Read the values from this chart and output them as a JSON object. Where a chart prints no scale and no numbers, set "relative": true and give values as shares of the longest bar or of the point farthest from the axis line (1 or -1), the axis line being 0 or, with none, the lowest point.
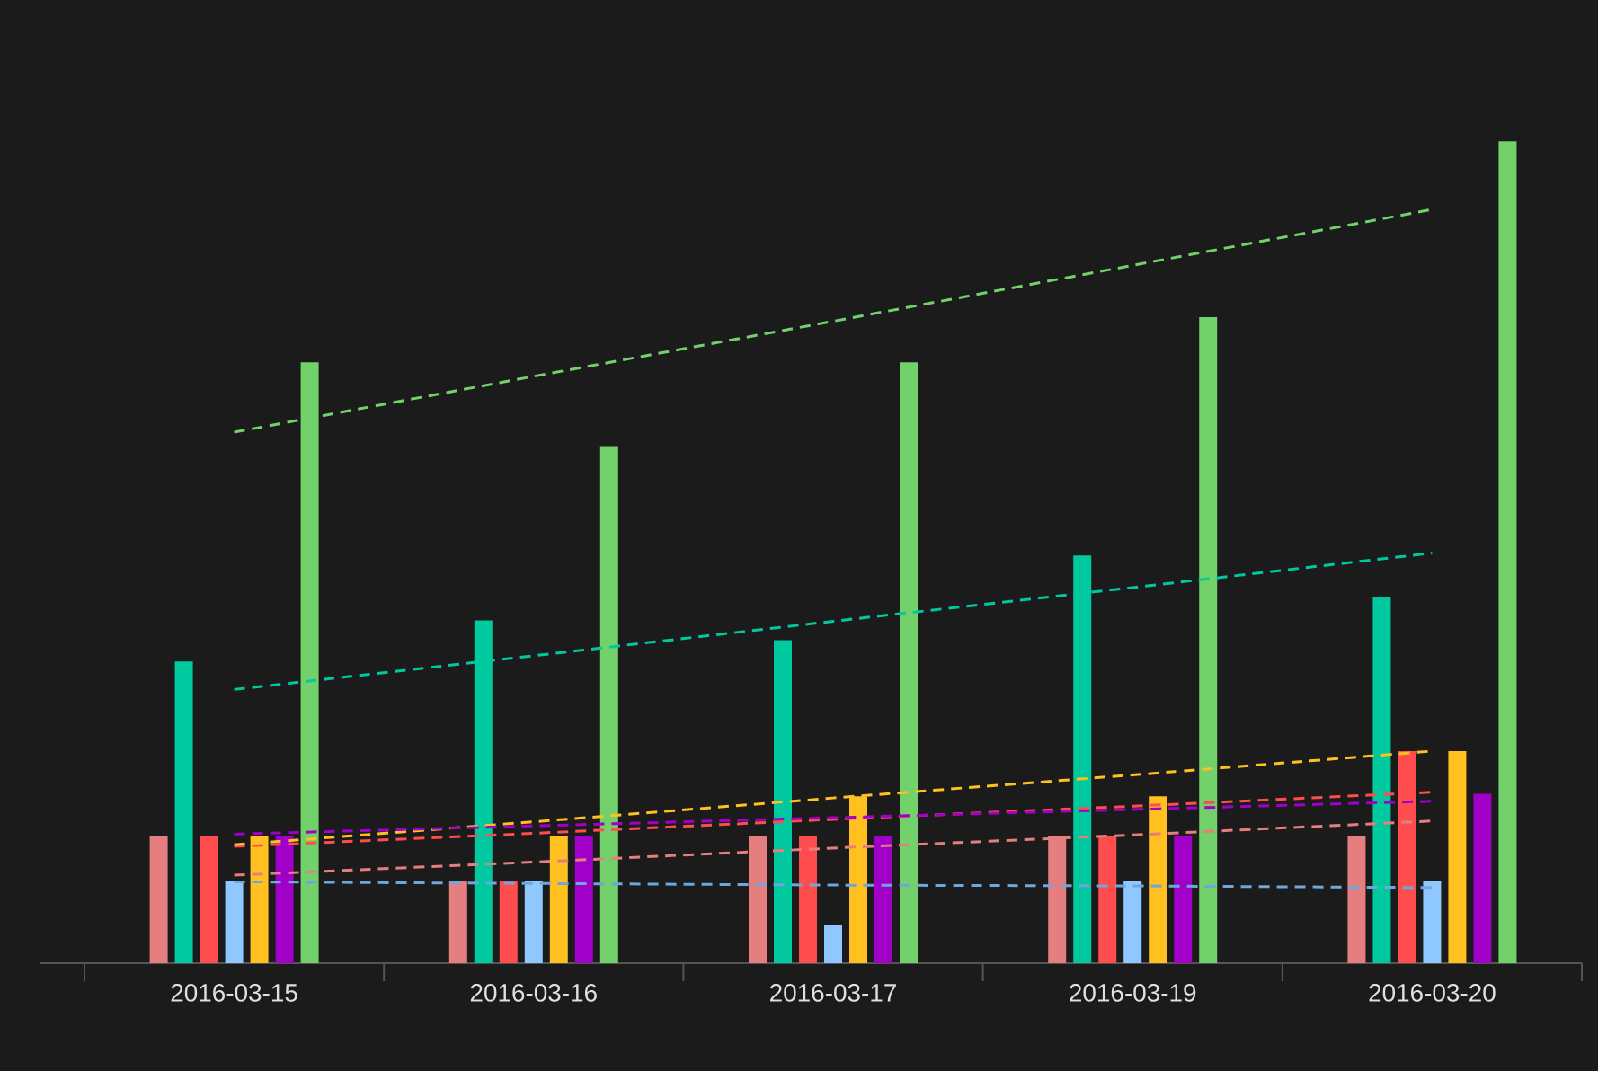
{
  "chart_data": {
    "type": "bar",
    "relative": true,
    "categories": [
      "2016-03-15",
      "2016-03-16",
      "2016-03-17",
      "2016-03-19",
      "2016-03-20"
    ],
    "series": [
      {
        "color": "#e57f7f",
        "values": [
          0.155,
          0.1,
          0.155,
          0.155,
          0.155
        ]
      },
      {
        "color": "#00c9a0",
        "values": [
          0.367,
          0.417,
          0.393,
          0.496,
          0.445
        ]
      },
      {
        "color": "#ff4d4d",
        "values": [
          0.155,
          0.1,
          0.155,
          0.155,
          0.258
        ]
      },
      {
        "color": "#8ec8ff",
        "values": [
          0.1,
          0.1,
          0.046,
          0.1,
          0.1
        ]
      },
      {
        "color": "#ffc020",
        "values": [
          0.155,
          0.155,
          0.203,
          0.203,
          0.258
        ]
      },
      {
        "color": "#a000c8",
        "values": [
          0.155,
          0.155,
          0.155,
          0.155,
          0.206
        ]
      },
      {
        "color": "#72d16a",
        "values": [
          0.731,
          0.629,
          0.731,
          0.786,
          1.0
        ]
      },
      {
        "type": "line",
        "line_style": "dashed",
        "color": "#e57f7f",
        "values": [
          0.107,
          0.123,
          0.14,
          0.156,
          0.173
        ]
      },
      {
        "type": "line",
        "line_style": "dashed",
        "color": "#00c9a0",
        "values": [
          0.333,
          0.374,
          0.416,
          0.457,
          0.499
        ]
      },
      {
        "type": "line",
        "line_style": "dashed",
        "color": "#ff4d4d",
        "values": [
          0.142,
          0.158,
          0.175,
          0.191,
          0.208
        ]
      },
      {
        "type": "line",
        "line_style": "dashed",
        "color": "#6fa6dc",
        "values": [
          0.099,
          0.097,
          0.095,
          0.094,
          0.092
        ]
      },
      {
        "type": "line",
        "line_style": "dashed",
        "color": "#ffc020",
        "values": [
          0.144,
          0.172,
          0.201,
          0.229,
          0.258
        ]
      },
      {
        "type": "line",
        "line_style": "dashed",
        "color": "#a000c8",
        "values": [
          0.157,
          0.167,
          0.177,
          0.187,
          0.197
        ]
      },
      {
        "type": "line",
        "line_style": "dashed",
        "color": "#72d16a",
        "values": [
          0.646,
          0.714,
          0.781,
          0.849,
          0.917
        ]
      }
    ]
  }
}
